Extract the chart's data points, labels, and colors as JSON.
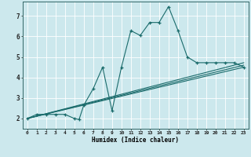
{
  "xlabel": "Humidex (Indice chaleur)",
  "bg_color": "#cce8ed",
  "grid_color": "#ffffff",
  "line_color": "#1a6b6b",
  "xlim": [
    -0.5,
    23.5
  ],
  "ylim": [
    1.5,
    7.7
  ],
  "xticks": [
    0,
    1,
    2,
    3,
    4,
    5,
    6,
    7,
    8,
    9,
    10,
    11,
    12,
    13,
    14,
    15,
    16,
    17,
    18,
    19,
    20,
    21,
    22,
    23
  ],
  "yticks": [
    2,
    3,
    4,
    5,
    6,
    7
  ],
  "series": [
    {
      "x": [
        0,
        1,
        2,
        3,
        4,
        5,
        5.5,
        6,
        7,
        8,
        9,
        10,
        11,
        12,
        13,
        14,
        15,
        16,
        17,
        18,
        19,
        20,
        21,
        22,
        23
      ],
      "y": [
        2.0,
        2.2,
        2.2,
        2.2,
        2.2,
        2.0,
        1.95,
        2.65,
        3.45,
        4.5,
        2.38,
        4.5,
        6.28,
        6.05,
        6.68,
        6.68,
        7.45,
        6.3,
        5.0,
        4.72,
        4.72,
        4.72,
        4.72,
        4.72,
        4.5
      ],
      "marker": true
    },
    {
      "x": [
        0,
        23
      ],
      "y": [
        2.0,
        4.72
      ],
      "marker": false
    },
    {
      "x": [
        0,
        23
      ],
      "y": [
        2.0,
        4.5
      ],
      "marker": false
    },
    {
      "x": [
        0,
        23
      ],
      "y": [
        2.0,
        4.6
      ],
      "marker": false
    }
  ]
}
